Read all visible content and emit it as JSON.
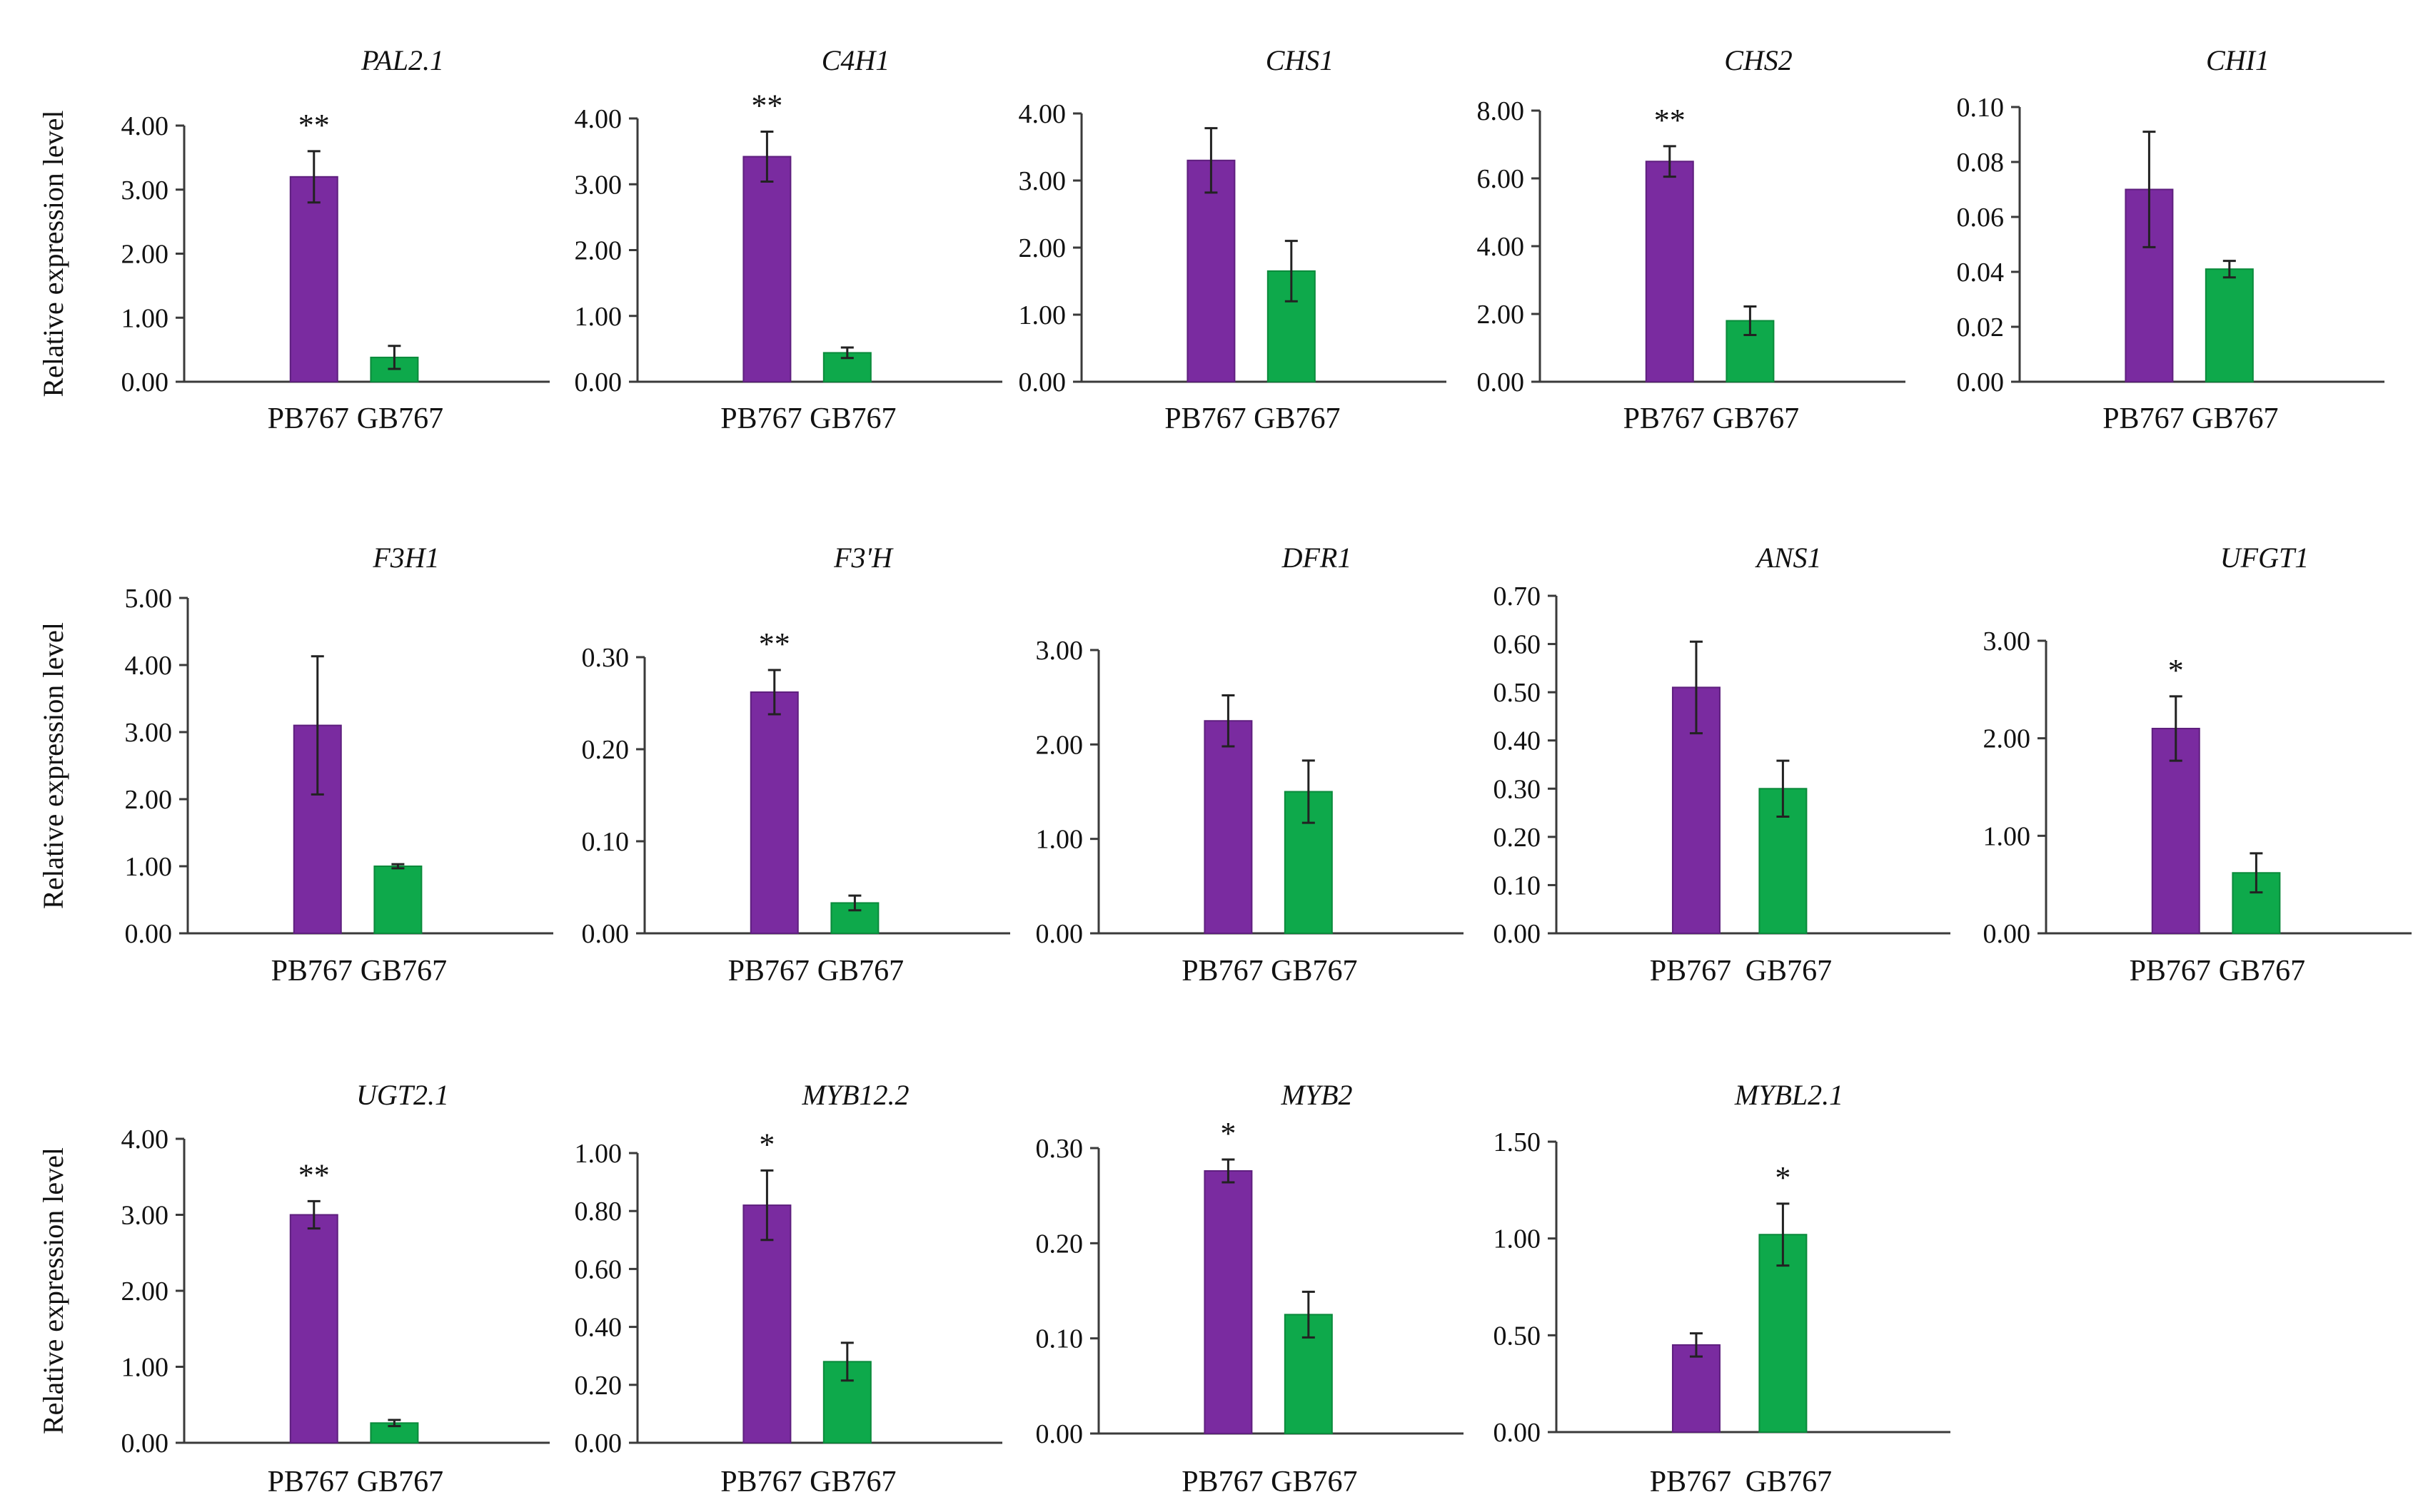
{
  "figure": {
    "ylabel": "Relative expression level",
    "colors": {
      "PB767": "#7a2ba0",
      "GB767": "#0ea94b",
      "axis": "#3a3a3a",
      "text": "#111111"
    }
  },
  "chart_data": [
    {
      "type": "bar",
      "title": "PAL2.1",
      "categories": [
        "PB767",
        "GB767"
      ],
      "values": [
        3.2,
        0.38
      ],
      "errors": [
        0.4,
        0.18
      ],
      "significance": [
        "**",
        ""
      ],
      "ylim": [
        0,
        4
      ],
      "yticks": [
        "0.00",
        "1.00",
        "2.00",
        "3.00",
        "4.00"
      ],
      "ylabel": "Relative expression level"
    },
    {
      "type": "bar",
      "title": "C4H1",
      "categories": [
        "PB767",
        "GB767"
      ],
      "values": [
        3.42,
        0.44
      ],
      "errors": [
        0.38,
        0.08
      ],
      "significance": [
        "**",
        ""
      ],
      "ylim": [
        0,
        4
      ],
      "yticks": [
        "0.00",
        "1.00",
        "2.00",
        "3.00",
        "4.00"
      ],
      "ylabel": ""
    },
    {
      "type": "bar",
      "title": "CHS1",
      "categories": [
        "PB767",
        "GB767"
      ],
      "values": [
        3.3,
        1.65
      ],
      "errors": [
        0.48,
        0.45
      ],
      "significance": [
        "",
        ""
      ],
      "ylim": [
        0,
        4
      ],
      "yticks": [
        "0.00",
        "1.00",
        "2.00",
        "3.00",
        "4.00"
      ],
      "ylabel": ""
    },
    {
      "type": "bar",
      "title": "CHS2",
      "categories": [
        "PB767",
        "GB767"
      ],
      "values": [
        6.5,
        1.8
      ],
      "errors": [
        0.45,
        0.42
      ],
      "significance": [
        "**",
        ""
      ],
      "ylim": [
        0,
        8
      ],
      "yticks": [
        "0.00",
        "2.00",
        "4.00",
        "6.00",
        "8.00"
      ],
      "ylabel": ""
    },
    {
      "type": "bar",
      "title": "CHI1",
      "categories": [
        "PB767",
        "GB767"
      ],
      "values": [
        0.07,
        0.041
      ],
      "errors": [
        0.021,
        0.003
      ],
      "significance": [
        "",
        ""
      ],
      "ylim": [
        0,
        0.1
      ],
      "yticks": [
        "0.00",
        "0.02",
        "0.04",
        "0.06",
        "0.08",
        "0.10"
      ],
      "ylabel": ""
    },
    {
      "type": "bar",
      "title": "F3H1",
      "categories": [
        "PB767",
        "GB767"
      ],
      "values": [
        3.1,
        1.0
      ],
      "errors": [
        1.03,
        0.03
      ],
      "significance": [
        "",
        ""
      ],
      "ylim": [
        0,
        5
      ],
      "yticks": [
        "0.00",
        "1.00",
        "2.00",
        "3.00",
        "4.00",
        "5.00"
      ],
      "ylabel": "Relative expression level"
    },
    {
      "type": "bar",
      "title": "F3'H",
      "categories": [
        "PB767",
        "GB767"
      ],
      "values": [
        0.262,
        0.033
      ],
      "errors": [
        0.024,
        0.008
      ],
      "significance": [
        "**",
        ""
      ],
      "ylim": [
        0,
        0.3
      ],
      "yticks": [
        "0.00",
        "0.10",
        "0.20",
        "0.30"
      ],
      "ylabel": ""
    },
    {
      "type": "bar",
      "title": "DFR1",
      "categories": [
        "PB767",
        "GB767"
      ],
      "values": [
        2.25,
        1.5
      ],
      "errors": [
        0.27,
        0.33
      ],
      "significance": [
        "",
        ""
      ],
      "ylim": [
        0,
        3
      ],
      "yticks": [
        "0.00",
        "1.00",
        "2.00",
        "3.00"
      ],
      "ylabel": ""
    },
    {
      "type": "bar",
      "title": "ANS1",
      "categories": [
        "PB767",
        "GB767"
      ],
      "values": [
        0.51,
        0.3
      ],
      "errors": [
        0.095,
        0.058
      ],
      "significance": [
        "",
        ""
      ],
      "ylim": [
        0,
        0.7
      ],
      "yticks": [
        "0.00",
        "0.10",
        "0.20",
        "0.30",
        "0.40",
        "0.50",
        "0.60",
        "0.70"
      ],
      "ylabel": ""
    },
    {
      "type": "bar",
      "title": "UFGT1",
      "categories": [
        "PB767",
        "GB767"
      ],
      "values": [
        2.1,
        0.62
      ],
      "errors": [
        0.33,
        0.2
      ],
      "significance": [
        "*",
        ""
      ],
      "ylim": [
        0,
        3
      ],
      "yticks": [
        "0.00",
        "1.00",
        "2.00",
        "3.00"
      ],
      "ylabel": ""
    },
    {
      "type": "bar",
      "title": "UGT2.1",
      "categories": [
        "PB767",
        "GB767"
      ],
      "values": [
        3.0,
        0.26
      ],
      "errors": [
        0.18,
        0.04
      ],
      "significance": [
        "**",
        ""
      ],
      "ylim": [
        0,
        4
      ],
      "yticks": [
        "0.00",
        "1.00",
        "2.00",
        "3.00",
        "4.00"
      ],
      "ylabel": "Relative expression level"
    },
    {
      "type": "bar",
      "title": "MYB12.2",
      "categories": [
        "PB767",
        "GB767"
      ],
      "values": [
        0.82,
        0.28
      ],
      "errors": [
        0.12,
        0.065
      ],
      "significance": [
        "*",
        ""
      ],
      "ylim": [
        0,
        1
      ],
      "yticks": [
        "0.00",
        "0.20",
        "0.40",
        "0.60",
        "0.80",
        "1.00"
      ],
      "ylabel": ""
    },
    {
      "type": "bar",
      "title": "MYB2",
      "categories": [
        "PB767",
        "GB767"
      ],
      "values": [
        0.276,
        0.125
      ],
      "errors": [
        0.012,
        0.024
      ],
      "significance": [
        "*",
        ""
      ],
      "ylim": [
        0,
        0.3
      ],
      "yticks": [
        "0.00",
        "0.10",
        "0.20",
        "0.30"
      ],
      "ylabel": ""
    },
    {
      "type": "bar",
      "title": "MYBL2.1",
      "categories": [
        "PB767",
        "GB767"
      ],
      "values": [
        0.45,
        1.02
      ],
      "errors": [
        0.06,
        0.16
      ],
      "significance": [
        "",
        "*"
      ],
      "ylim": [
        0,
        1.5
      ],
      "yticks": [
        "0.00",
        "0.50",
        "1.00",
        "1.50"
      ],
      "ylabel": ""
    }
  ]
}
